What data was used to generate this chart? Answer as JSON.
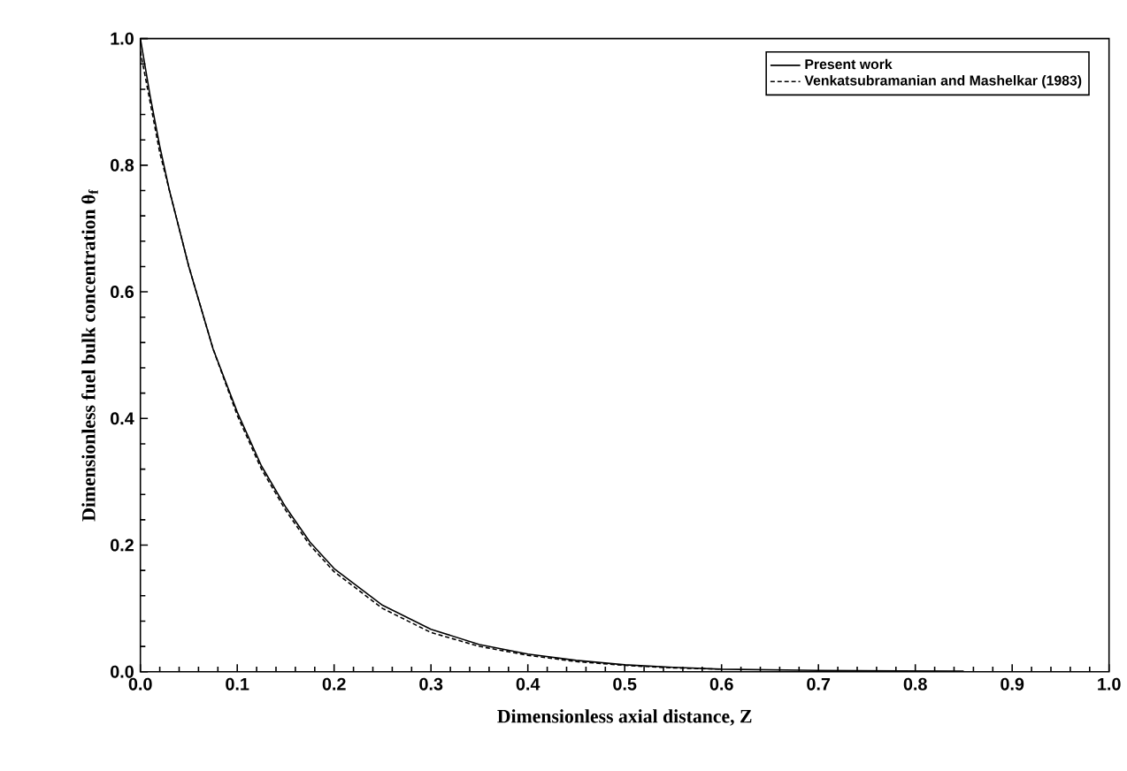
{
  "chart_data": {
    "type": "line",
    "xlabel": "Dimensionless axial distance, Z",
    "ylabel": "Dimensionless fuel bulk concentration θ$_{f}$",
    "xlim": [
      0,
      1
    ],
    "ylim": [
      0,
      1
    ],
    "xticks": [
      {
        "value": 0,
        "label": "0.0"
      },
      0.1,
      0.2,
      0.3,
      0.4,
      0.5,
      0.6,
      0.7,
      0.8,
      0.9,
      {
        "value": 1,
        "label": "1.0"
      }
    ],
    "yticks": [
      {
        "value": 0,
        "label": "0.0"
      },
      0.2,
      0.4,
      0.6,
      0.8,
      {
        "value": 1,
        "label": "1.0"
      }
    ],
    "grid": false,
    "legend": "top right",
    "marker": "none",
    "series": [
      {
        "name": "Present work",
        "color": "#000000",
        "line_style": "solid",
        "x": [
          0,
          0.01,
          0.02,
          0.03,
          0.05,
          0.075,
          0.1,
          0.125,
          0.15,
          0.175,
          0.2,
          0.25,
          0.3,
          0.35,
          0.4,
          0.45,
          0.5,
          0.55,
          0.6,
          0.7,
          0.85
        ],
        "values": [
          1.0,
          0.91,
          0.83,
          0.76,
          0.64,
          0.51,
          0.41,
          0.325,
          0.26,
          0.205,
          0.163,
          0.105,
          0.067,
          0.043,
          0.028,
          0.018,
          0.011,
          0.007,
          0.004,
          0.002,
          0.001
        ]
      },
      {
        "name": "Venkatsubramanian and Mashelkar (1983)",
        "color": "#000000",
        "line_style": "dashed",
        "x": [
          0,
          0.01,
          0.02,
          0.03,
          0.05,
          0.075,
          0.1,
          0.125,
          0.15,
          0.175,
          0.2,
          0.25,
          0.3,
          0.35,
          0.4,
          0.45,
          0.5,
          0.55,
          0.6
        ],
        "values": [
          0.98,
          0.9,
          0.82,
          0.76,
          0.64,
          0.51,
          0.405,
          0.32,
          0.255,
          0.2,
          0.158,
          0.1,
          0.062,
          0.04,
          0.026,
          0.016,
          0.01,
          0.006,
          0.004
        ]
      }
    ]
  }
}
